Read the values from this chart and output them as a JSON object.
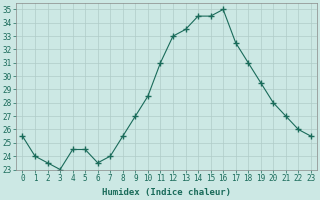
{
  "xlabel": "Humidex (Indice chaleur)",
  "ylabel": "",
  "x": [
    0,
    1,
    2,
    3,
    4,
    5,
    6,
    7,
    8,
    9,
    10,
    11,
    12,
    13,
    14,
    15,
    16,
    17,
    18,
    19,
    20,
    21,
    22,
    23
  ],
  "y": [
    25.5,
    24.0,
    23.5,
    23.0,
    24.5,
    24.5,
    23.5,
    24.0,
    25.5,
    27.0,
    28.5,
    31.0,
    33.0,
    33.5,
    34.5,
    34.5,
    35.0,
    32.5,
    31.0,
    29.5,
    28.0,
    27.0,
    26.0,
    25.5
  ],
  "line_color": "#1a6b5a",
  "marker": "+",
  "marker_size": 4,
  "bg_color": "#cce8e4",
  "grid_color": "#b0ccc8",
  "xlim": [
    -0.5,
    23.5
  ],
  "ylim": [
    23,
    35.5
  ],
  "yticks": [
    23,
    24,
    25,
    26,
    27,
    28,
    29,
    30,
    31,
    32,
    33,
    34,
    35
  ],
  "xticks": [
    0,
    1,
    2,
    3,
    4,
    5,
    6,
    7,
    8,
    9,
    10,
    11,
    12,
    13,
    14,
    15,
    16,
    17,
    18,
    19,
    20,
    21,
    22,
    23
  ],
  "tick_fontsize": 5.5,
  "label_fontsize": 6.5
}
